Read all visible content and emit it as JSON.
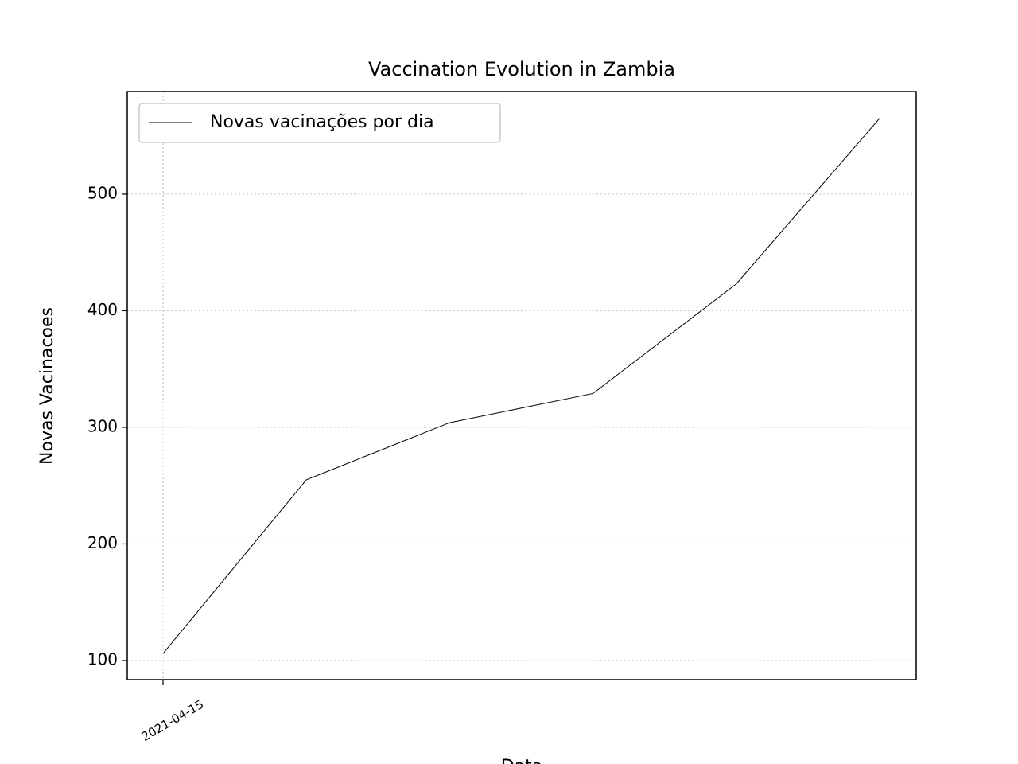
{
  "chart_data": {
    "type": "line",
    "title": "Vaccination Evolution in Zambia",
    "x_label": "Data",
    "y_label": "Novas Vacinacoes",
    "categories": [
      "2021-04-15",
      null,
      null,
      null,
      null,
      null
    ],
    "series": [
      {
        "name": "Novas vacinações por dia",
        "color": "#000000",
        "values": [
          106,
          255,
          304,
          329,
          423,
          565
        ]
      }
    ],
    "ylim": [
      83.6,
      588
    ],
    "yticks": [
      100,
      200,
      300,
      400,
      500
    ],
    "grid": true,
    "legend": "upper left"
  }
}
